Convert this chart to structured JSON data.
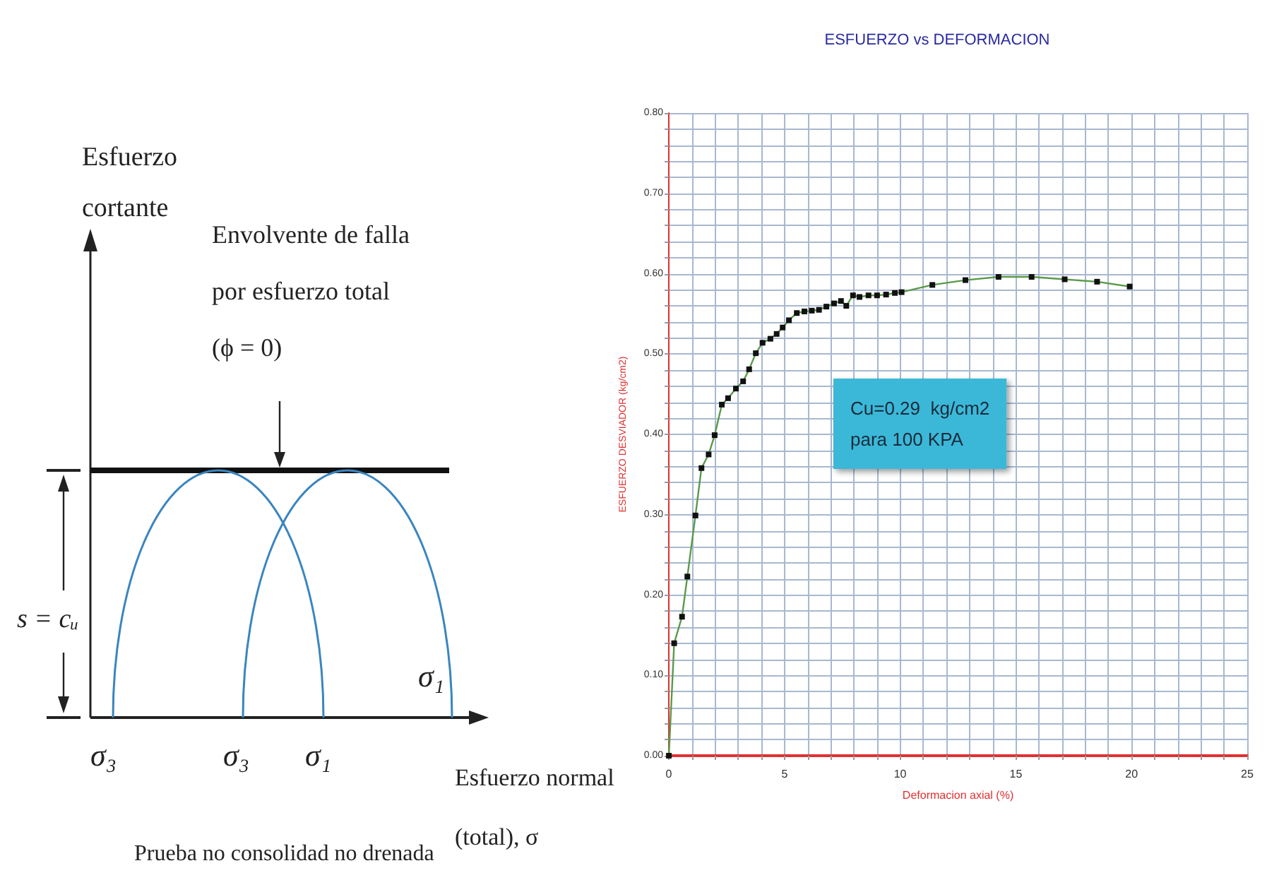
{
  "chart_data": [
    {
      "type": "other",
      "ylabel": "Esfuerzo cortante",
      "xlabel": "Esfuerzo normal (total), σ",
      "annotations": [
        "Envolvente de falla por esfuerzo total (ϕ = 0)",
        "s = cᵤ",
        "σ₃",
        "σ₃",
        "σ₁",
        "σ₁",
        "Prueba no consolidad no drenada"
      ]
    },
    {
      "type": "line",
      "title": "ESFUERZO vs DEFORMACION",
      "xlabel": "Deformacion axial (%)",
      "ylabel": "ESFUERZO DESVIADOR (kg/cm2)",
      "marker": "square",
      "grid": true,
      "xlim": [
        0,
        25
      ],
      "xticks": [
        0,
        {
          "value": 1,
          "label": null
        },
        {
          "value": 2,
          "label": null
        },
        {
          "value": 3,
          "label": null
        },
        {
          "value": 4,
          "label": null
        },
        5,
        {
          "value": 6,
          "label": null
        },
        {
          "value": 7,
          "label": null
        },
        {
          "value": 8,
          "label": null
        },
        {
          "value": 9,
          "label": null
        },
        10,
        {
          "value": 11,
          "label": null
        },
        {
          "value": 12,
          "label": null
        },
        {
          "value": 13,
          "label": null
        },
        {
          "value": 14,
          "label": null
        },
        15,
        {
          "value": 16,
          "label": null
        },
        {
          "value": 17,
          "label": null
        },
        {
          "value": 18,
          "label": null
        },
        {
          "value": 19,
          "label": null
        },
        20,
        {
          "value": 21,
          "label": null
        },
        {
          "value": 22,
          "label": null
        },
        {
          "value": 23,
          "label": null
        },
        {
          "value": 24,
          "label": null
        },
        25
      ],
      "ylim": [
        0,
        0.8
      ],
      "yticks": [
        {
          "value": 0,
          "label": "0.00"
        },
        {
          "value": 0.02,
          "label": null
        },
        {
          "value": 0.04,
          "label": null
        },
        {
          "value": 0.06,
          "label": null
        },
        {
          "value": 0.08,
          "label": null
        },
        {
          "value": 0.1,
          "label": "0.10"
        },
        {
          "value": 0.12,
          "label": null
        },
        {
          "value": 0.14,
          "label": null
        },
        {
          "value": 0.16,
          "label": null
        },
        {
          "value": 0.18,
          "label": null
        },
        {
          "value": 0.2,
          "label": "0.20"
        },
        {
          "value": 0.22,
          "label": null
        },
        {
          "value": 0.24,
          "label": null
        },
        {
          "value": 0.26,
          "label": null
        },
        {
          "value": 0.28,
          "label": null
        },
        {
          "value": 0.3,
          "label": "0.30"
        },
        {
          "value": 0.32,
          "label": null
        },
        {
          "value": 0.34,
          "label": null
        },
        {
          "value": 0.36,
          "label": null
        },
        {
          "value": 0.38,
          "label": null
        },
        {
          "value": 0.4,
          "label": "0.40"
        },
        {
          "value": 0.42,
          "label": null
        },
        {
          "value": 0.44,
          "label": null
        },
        {
          "value": 0.46,
          "label": null
        },
        {
          "value": 0.48,
          "label": null
        },
        {
          "value": 0.5,
          "label": "0.50"
        },
        {
          "value": 0.52,
          "label": null
        },
        {
          "value": 0.54,
          "label": null
        },
        {
          "value": 0.56,
          "label": null
        },
        {
          "value": 0.58,
          "label": null
        },
        {
          "value": 0.6,
          "label": "0.60"
        },
        {
          "value": 0.62,
          "label": null
        },
        {
          "value": 0.64,
          "label": null
        },
        {
          "value": 0.66,
          "label": null
        },
        {
          "value": 0.68,
          "label": null
        },
        {
          "value": 0.7,
          "label": "0.70"
        },
        {
          "value": 0.72,
          "label": null
        },
        {
          "value": 0.74,
          "label": null
        },
        {
          "value": 0.76,
          "label": null
        },
        {
          "value": 0.78,
          "label": null
        },
        {
          "value": 0.8,
          "label": "0.80"
        }
      ],
      "annotations": [
        "Cu=0.29  kg/cm2\npara 100 KPA"
      ],
      "series": [
        {
          "color": "#5a9a4a",
          "x": [
            0,
            0.23,
            0.57,
            0.8,
            1.15,
            1.41,
            1.72,
            1.98,
            2.29,
            2.56,
            2.9,
            3.21,
            3.47,
            3.76,
            4.05,
            4.39,
            4.66,
            4.92,
            5.19,
            5.53,
            5.86,
            6.18,
            6.49,
            6.81,
            7.14,
            7.44,
            7.67,
            7.96,
            8.24,
            8.63,
            9.0,
            9.39,
            9.77,
            10.06,
            11.39,
            12.82,
            14.25,
            15.68,
            17.11,
            18.51,
            19.92
          ],
          "values": [
            0,
            0.14,
            0.173,
            0.223,
            0.299,
            0.358,
            0.375,
            0.399,
            0.437,
            0.445,
            0.457,
            0.466,
            0.481,
            0.501,
            0.514,
            0.519,
            0.525,
            0.533,
            0.542,
            0.551,
            0.553,
            0.554,
            0.555,
            0.559,
            0.563,
            0.566,
            0.56,
            0.573,
            0.571,
            0.573,
            0.573,
            0.574,
            0.576,
            0.577,
            0.586,
            0.592,
            0.596,
            0.596,
            0.593,
            0.59,
            0.584
          ]
        }
      ]
    }
  ]
}
